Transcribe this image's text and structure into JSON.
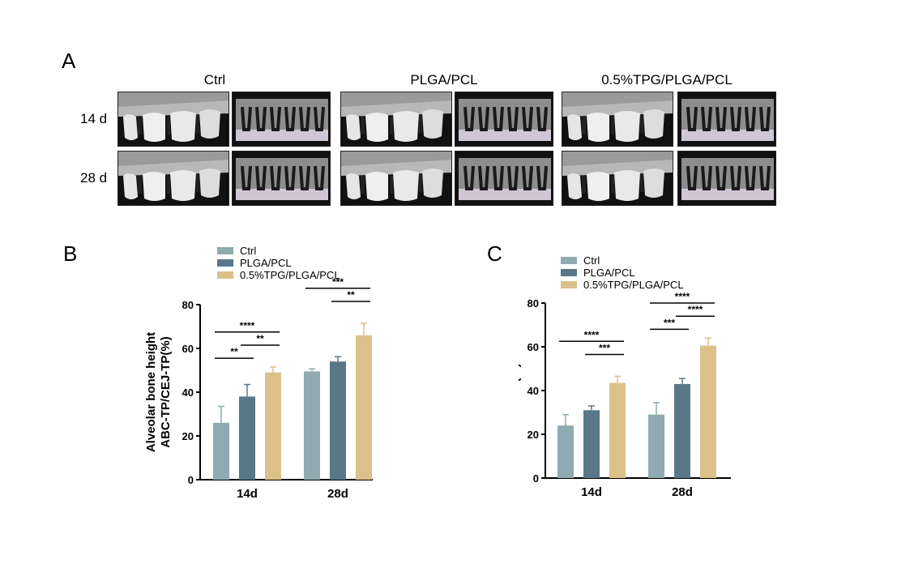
{
  "panelA": {
    "letter": "A",
    "groups": [
      "Ctrl",
      "PLGA/PCL",
      "0.5%TPG/PLGA/PCL"
    ],
    "rows": [
      "14 d",
      "28 d"
    ]
  },
  "panelB": {
    "letter": "B"
  },
  "panelC": {
    "letter": "C"
  },
  "colors": {
    "ctrl": "#8faab1",
    "plga": "#58788a",
    "tpg": "#dcc089"
  },
  "chart_data": [
    {
      "type": "bar",
      "panel": "B",
      "ylabel_lines": [
        "Alveolar bone height",
        "ABC-TP/CEJ-TP(%)"
      ],
      "categories": [
        "14d",
        "28d"
      ],
      "ylim": [
        0,
        80
      ],
      "yticks": [
        0,
        20,
        40,
        60,
        80
      ],
      "series": [
        {
          "name": "Ctrl",
          "color": "#8faab1",
          "values": [
            26,
            49.5
          ],
          "errors": [
            7.5,
            1.2
          ]
        },
        {
          "name": "PLGA/PCL",
          "color": "#58788a",
          "values": [
            38,
            54
          ],
          "errors": [
            5.5,
            2.2
          ]
        },
        {
          "name": "0.5%TPG/PLGA/PCL",
          "color": "#dcc089",
          "values": [
            49,
            66
          ],
          "errors": [
            2.5,
            5.5
          ]
        }
      ],
      "legend": "top",
      "significance": [
        {
          "category": 0,
          "from": 0,
          "to": 1,
          "label": "**",
          "level": 0
        },
        {
          "category": 0,
          "from": 1,
          "to": 2,
          "label": "**",
          "level": 1
        },
        {
          "category": 0,
          "from": 0,
          "to": 2,
          "label": "****",
          "level": 2
        },
        {
          "category": 1,
          "from": 1,
          "to": 2,
          "label": "**",
          "level": 1
        },
        {
          "category": 1,
          "from": 0,
          "to": 2,
          "label": "***",
          "level": 2
        }
      ]
    },
    {
      "type": "bar",
      "panel": "C",
      "ylabel_lines": [
        "BV/TV(%)"
      ],
      "categories": [
        "14d",
        "28d"
      ],
      "ylim": [
        0,
        80
      ],
      "yticks": [
        0,
        20,
        40,
        60,
        80
      ],
      "series": [
        {
          "name": "Ctrl",
          "color": "#8faab1",
          "values": [
            24,
            29
          ],
          "errors": [
            5,
            5.5
          ]
        },
        {
          "name": "PLGA/PCL",
          "color": "#58788a",
          "values": [
            31,
            43
          ],
          "errors": [
            2,
            2.5
          ]
        },
        {
          "name": "0.5%TPG/PLGA/PCL",
          "color": "#dcc089",
          "values": [
            43.5,
            60.5
          ],
          "errors": [
            3,
            3.5
          ]
        }
      ],
      "legend": "top",
      "significance": [
        {
          "category": 0,
          "from": 1,
          "to": 2,
          "label": "***",
          "level": 1
        },
        {
          "category": 0,
          "from": 0,
          "to": 2,
          "label": "****",
          "level": 2
        },
        {
          "category": 1,
          "from": 0,
          "to": 1,
          "label": "***",
          "level": 0
        },
        {
          "category": 1,
          "from": 1,
          "to": 2,
          "label": "****",
          "level": 1
        },
        {
          "category": 1,
          "from": 0,
          "to": 2,
          "label": "****",
          "level": 2
        }
      ]
    }
  ]
}
